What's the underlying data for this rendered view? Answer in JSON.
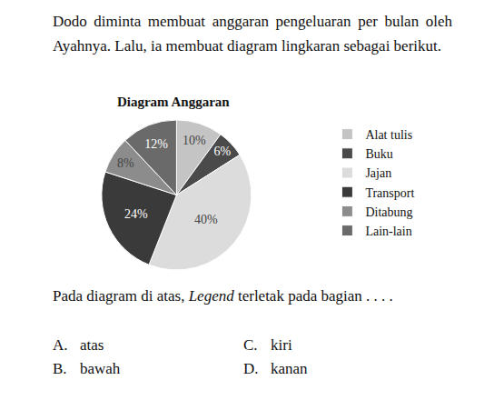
{
  "intro": "Dodo diminta membuat anggaran pengeluaran per bulan oleh Ayahnya. Lalu, ia membuat diagram lingkaran sebagai berikut.",
  "chart_data": {
    "type": "pie",
    "title": "Diagram Anggaran",
    "categories": [
      "Alat tulis",
      "Buku",
      "Jajan",
      "Transport",
      "Ditabung",
      "Lain-lain"
    ],
    "values": [
      10,
      6,
      40,
      24,
      8,
      12
    ],
    "value_labels": [
      "10%",
      "6%",
      "40%",
      "24%",
      "8%",
      "12%"
    ],
    "colors": [
      "#c4c4c4",
      "#4a4a4a",
      "#dcdcdc",
      "#3a3a3a",
      "#8c8c8c",
      "#6a6a6a"
    ],
    "data_labels": true,
    "legend": "right"
  },
  "question": {
    "before": "Pada diagram di atas, ",
    "emphasis": "Legend",
    "after": " terletak pada bagian . . . ."
  },
  "options": [
    {
      "letter": "A.",
      "text": "atas"
    },
    {
      "letter": "B.",
      "text": "bawah"
    },
    {
      "letter": "C.",
      "text": "kiri"
    },
    {
      "letter": "D.",
      "text": "kanan"
    }
  ]
}
